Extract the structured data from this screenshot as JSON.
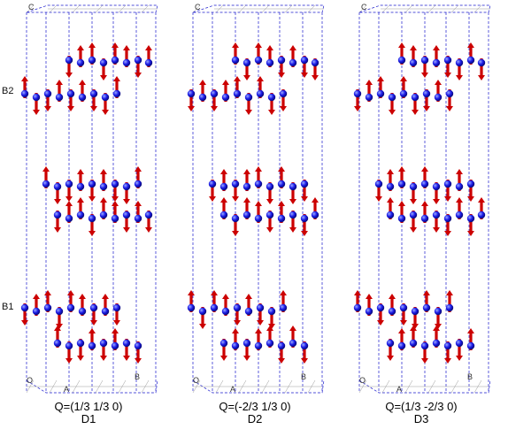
{
  "colors": {
    "cell_edge": "#1a1acc",
    "spin_arrow": "#cc0000",
    "atom": "#1a1ae6",
    "atom_highlight": "#9aa8ff",
    "grid": "#9a9a9a"
  },
  "layer_labels": {
    "upper": "B2",
    "lower": "B1"
  },
  "axis_labels": {
    "c": "C",
    "origin": "O",
    "a": "A",
    "b": "B"
  },
  "panels": [
    {
      "id": "D1",
      "q_label": "Q=(1/3 1/3 0)",
      "name": "D1"
    },
    {
      "id": "D2",
      "q_label": "Q=(-2/3 1/3 0)",
      "name": "D2"
    },
    {
      "id": "D3",
      "q_label": "Q=(1/3 -2/3 0)",
      "name": "D3"
    }
  ]
}
